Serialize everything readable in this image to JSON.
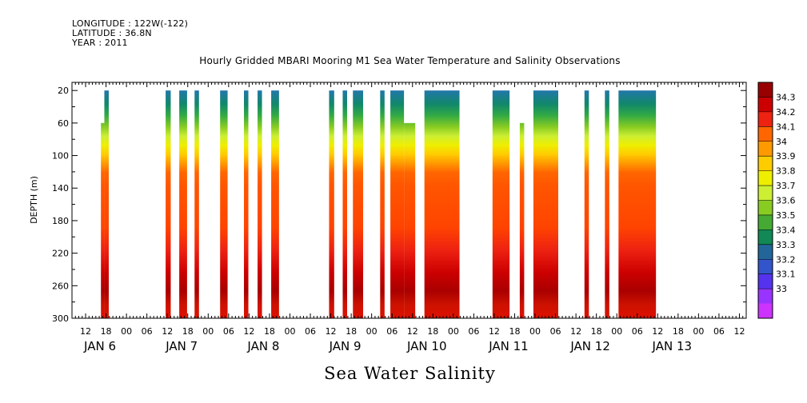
{
  "header": {
    "longitude": "LONGITUDE : 122W(-122)",
    "latitude": "LATITUDE : 36.8N",
    "year": "YEAR : 2011"
  },
  "chart_data": {
    "type": "heatmap",
    "title": "Hourly Gridded MBARI Mooring M1 Sea Water Temperature and Salinity Observations",
    "xlabel": "Sea Water Salinity",
    "ylabel": "DEPTH (m)",
    "x_unit": "hours since JAN 6 2011 00:00",
    "xlim": [
      8,
      206
    ],
    "ylim": [
      300,
      10
    ],
    "y_ticks": [
      20,
      60,
      100,
      140,
      180,
      220,
      260,
      300
    ],
    "x_hour_ticks": [
      {
        "h": 12,
        "label": "12"
      },
      {
        "h": 18,
        "label": "18"
      },
      {
        "h": 24,
        "label": "00"
      },
      {
        "h": 30,
        "label": "06"
      },
      {
        "h": 36,
        "label": "12"
      },
      {
        "h": 42,
        "label": "18"
      },
      {
        "h": 48,
        "label": "00"
      },
      {
        "h": 54,
        "label": "06"
      },
      {
        "h": 60,
        "label": "12"
      },
      {
        "h": 66,
        "label": "18"
      },
      {
        "h": 72,
        "label": "00"
      },
      {
        "h": 78,
        "label": "06"
      },
      {
        "h": 84,
        "label": "12"
      },
      {
        "h": 90,
        "label": "18"
      },
      {
        "h": 96,
        "label": "00"
      },
      {
        "h": 102,
        "label": "06"
      },
      {
        "h": 108,
        "label": "12"
      },
      {
        "h": 114,
        "label": "18"
      },
      {
        "h": 120,
        "label": "00"
      },
      {
        "h": 126,
        "label": "06"
      },
      {
        "h": 132,
        "label": "12"
      },
      {
        "h": 138,
        "label": "18"
      },
      {
        "h": 144,
        "label": "00"
      },
      {
        "h": 150,
        "label": "06"
      },
      {
        "h": 156,
        "label": "12"
      },
      {
        "h": 162,
        "label": "18"
      },
      {
        "h": 168,
        "label": "00"
      },
      {
        "h": 174,
        "label": "06"
      },
      {
        "h": 180,
        "label": "12"
      },
      {
        "h": 186,
        "label": "18"
      },
      {
        "h": 192,
        "label": "00"
      },
      {
        "h": 198,
        "label": "06"
      },
      {
        "h": 204,
        "label": "12"
      }
    ],
    "x_date_labels": [
      {
        "h": 12,
        "label": "JAN  6"
      },
      {
        "h": 36,
        "label": "JAN  7"
      },
      {
        "h": 60,
        "label": "JAN  8"
      },
      {
        "h": 84,
        "label": "JAN  9"
      },
      {
        "h": 108,
        "label": "JAN 10"
      },
      {
        "h": 132,
        "label": "JAN 11"
      },
      {
        "h": 156,
        "label": "JAN 12"
      },
      {
        "h": 180,
        "label": "JAN 13"
      }
    ],
    "colorbar": {
      "levels": [
        "34.3",
        "34.2",
        "34.1",
        "34",
        "33.9",
        "33.8",
        "33.7",
        "33.6",
        "33.5",
        "33.4",
        "33.3",
        "33.2",
        "33.1",
        "33"
      ],
      "colors": [
        "#990000",
        "#cc0000",
        "#ee2211",
        "#ff6600",
        "#ff9900",
        "#ffcc00",
        "#eeee00",
        "#ccee33",
        "#88cc22",
        "#44aa33",
        "#118855",
        "#226699",
        "#3355cc",
        "#5533ee",
        "#9933ff",
        "#cc33ff"
      ]
    },
    "observation_segments": [
      {
        "x0": 16.5,
        "x1": 17.5,
        "top": 60
      },
      {
        "x0": 17.5,
        "x1": 18.8,
        "top": 20
      },
      {
        "x0": 35.5,
        "x1": 37.0,
        "top": 20
      },
      {
        "x0": 39.5,
        "x1": 41.8,
        "top": 20
      },
      {
        "x0": 44.0,
        "x1": 45.3,
        "top": 20
      },
      {
        "x0": 51.5,
        "x1": 53.7,
        "top": 20
      },
      {
        "x0": 58.5,
        "x1": 59.8,
        "top": 20
      },
      {
        "x0": 62.5,
        "x1": 63.8,
        "top": 20
      },
      {
        "x0": 66.5,
        "x1": 68.8,
        "top": 20
      },
      {
        "x0": 83.5,
        "x1": 85.0,
        "top": 20
      },
      {
        "x0": 87.5,
        "x1": 88.8,
        "top": 20
      },
      {
        "x0": 90.5,
        "x1": 93.5,
        "top": 20
      },
      {
        "x0": 98.5,
        "x1": 99.8,
        "top": 20
      },
      {
        "x0": 101.5,
        "x1": 105.5,
        "top": 20
      },
      {
        "x0": 105.5,
        "x1": 108.8,
        "top": 60
      },
      {
        "x0": 111.5,
        "x1": 121.8,
        "top": 20
      },
      {
        "x0": 131.5,
        "x1": 136.5,
        "top": 20
      },
      {
        "x0": 139.5,
        "x1": 140.8,
        "top": 60
      },
      {
        "x0": 143.5,
        "x1": 150.8,
        "top": 20
      },
      {
        "x0": 158.5,
        "x1": 159.8,
        "top": 20
      },
      {
        "x0": 164.5,
        "x1": 165.8,
        "top": 20
      },
      {
        "x0": 168.5,
        "x1": 179.5,
        "top": 20
      }
    ]
  }
}
